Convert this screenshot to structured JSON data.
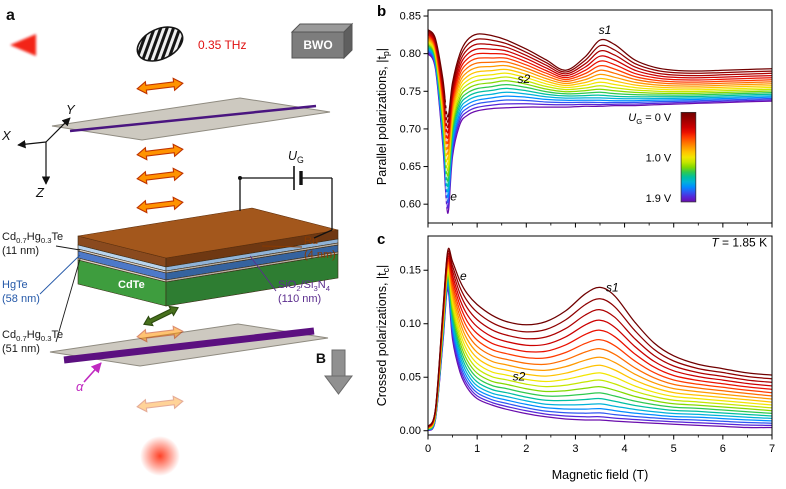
{
  "panels": {
    "a": "a",
    "b": "b",
    "c": "c"
  },
  "panel_a": {
    "beam_label": "0.35 THz",
    "source_label": "BWO",
    "axis_labels": {
      "x": "X",
      "y": "Y",
      "z": "Z"
    },
    "gate": {
      "pre": "U",
      "sub": "G"
    },
    "field_label": "B",
    "alpha_label": "α",
    "layers": {
      "cap_top_line1": "Cd~0.7~Hg~0.3~Te",
      "cap_top_line2": "(11 nm)",
      "hgte_line1": "HgTe",
      "hgte_line2": "(58 nm)",
      "substrate": "CdTe",
      "cap_bottom_line1": "Cd~0.7~Hg~0.3~Te",
      "cap_bottom_line2": "(51 nm)",
      "ru_line1": "Ru",
      "ru_line2": "(4 nm)",
      "insulator_line1": "SiO~2~/Si~3~N~4~",
      "insulator_line2": "(110 nm)"
    },
    "colors": {
      "beam": "#f21000",
      "plate": "#cdc9c0",
      "polarizer_line": "#4a1580",
      "analyzer_stripe": "#5c1080",
      "ru_top": "#a3571c",
      "hgte_blue": "#4d79c9",
      "cdte_green": "#3e9d3e",
      "insulator_blue": "#b8d4ee",
      "arrow_orange": "#ff9300",
      "rotated_green": "#47701c",
      "alpha_magenta": "#c02ac0"
    }
  },
  "legend": {
    "entries": [
      {
        "pre": "U",
        "sub": "G",
        "text": " = 0 V"
      },
      {
        "text": "1.0 V"
      },
      {
        "text": "1.9 V"
      }
    ]
  },
  "chart_data": [
    {
      "type": "line",
      "panel": "b",
      "ylabel": "Parallel polarizations, |t~p~|",
      "xlabel": "",
      "xlim": [
        0,
        7
      ],
      "ylim": [
        0.575,
        0.858
      ],
      "yticks": [
        0.6,
        0.65,
        0.7,
        0.75,
        0.8,
        0.85
      ],
      "xticks": [
        0,
        1,
        2,
        3,
        4,
        5,
        6,
        7
      ],
      "show_x_labels": false,
      "x": [
        0,
        0.15,
        0.3,
        0.4,
        0.5,
        0.65,
        0.8,
        1,
        1.3,
        1.6,
        2,
        2.4,
        2.8,
        3.2,
        3.5,
        3.8,
        4.2,
        4.6,
        5,
        5.5,
        6,
        6.5,
        7
      ],
      "series_top": {
        "name": "UG = 0 V",
        "values": [
          0.832,
          0.82,
          0.768,
          0.716,
          0.762,
          0.8,
          0.818,
          0.826,
          0.824,
          0.818,
          0.806,
          0.792,
          0.778,
          0.796,
          0.818,
          0.812,
          0.792,
          0.782,
          0.778,
          0.777,
          0.778,
          0.779,
          0.78
        ]
      },
      "series_mid": {
        "name": "UG = 1.0 V",
        "values": [
          0.816,
          0.8,
          0.724,
          0.652,
          0.716,
          0.752,
          0.764,
          0.77,
          0.772,
          0.774,
          0.768,
          0.76,
          0.755,
          0.758,
          0.762,
          0.759,
          0.755,
          0.753,
          0.752,
          0.752,
          0.753,
          0.754,
          0.755
        ]
      },
      "series_bottom": {
        "name": "UG = 1.9 V",
        "values": [
          0.8,
          0.78,
          0.68,
          0.588,
          0.664,
          0.706,
          0.718,
          0.724,
          0.727,
          0.728,
          0.729,
          0.729,
          0.729,
          0.73,
          0.73,
          0.731,
          0.731,
          0.732,
          0.733,
          0.734,
          0.735,
          0.736,
          0.737
        ]
      },
      "n_curves": 19,
      "curve_colors": [
        "#700000",
        "#8e0000",
        "#ad0000",
        "#cc0000",
        "#ea1000",
        "#ff3c00",
        "#ff6c00",
        "#ff9900",
        "#ffc300",
        "#f2e600",
        "#c6e600",
        "#84d900",
        "#2fc94f",
        "#00bfa0",
        "#00b2d9",
        "#008cff",
        "#2f57f2",
        "#5526d9",
        "#6a0dad"
      ],
      "annotations": [
        {
          "text": "s1",
          "x": 3.6,
          "y": 0.826,
          "italic": true
        },
        {
          "text": "s2",
          "x": 1.95,
          "y": 0.761,
          "italic": true
        },
        {
          "text": "e",
          "x": 0.52,
          "y": 0.605,
          "italic": true
        }
      ],
      "dashed_guide": {
        "x": 0.37,
        "y1": 0.596,
        "y2": 0.818
      },
      "colorbar": {
        "x0": 5.15,
        "x1": 5.45,
        "y_top": 0.722,
        "y_bot": 0.603,
        "labels_x": 4.95,
        "label_vals": [
          0.716,
          0.662,
          0.608
        ]
      }
    },
    {
      "type": "line",
      "panel": "c",
      "ylabel": "Crossed polarizations, |t~c~|",
      "xlabel": "Magnetic field (T)",
      "xlim": [
        0,
        7
      ],
      "ylim": [
        -0.004,
        0.182
      ],
      "yticks": [
        0.0,
        0.05,
        0.1,
        0.15
      ],
      "xticks": [
        0,
        1,
        2,
        3,
        4,
        5,
        6,
        7
      ],
      "show_x_labels": true,
      "x": [
        0,
        0.15,
        0.3,
        0.4,
        0.5,
        0.65,
        0.8,
        1,
        1.3,
        1.6,
        2,
        2.4,
        2.8,
        3.2,
        3.5,
        3.8,
        4.2,
        4.6,
        5,
        5.5,
        6,
        6.5,
        7
      ],
      "series_top": {
        "name": "UG = 0 V",
        "values": [
          0.004,
          0.02,
          0.11,
          0.168,
          0.158,
          0.14,
          0.128,
          0.118,
          0.108,
          0.102,
          0.099,
          0.102,
          0.112,
          0.128,
          0.134,
          0.126,
          0.102,
          0.082,
          0.07,
          0.062,
          0.058,
          0.054,
          0.052
        ]
      },
      "series_mid": {
        "name": "UG = 1.0 V",
        "values": [
          0.002,
          0.015,
          0.095,
          0.15,
          0.12,
          0.092,
          0.075,
          0.063,
          0.055,
          0.052,
          0.048,
          0.046,
          0.048,
          0.052,
          0.054,
          0.05,
          0.042,
          0.036,
          0.032,
          0.03,
          0.028,
          0.026,
          0.024
        ]
      },
      "series_bottom": {
        "name": "UG = 1.9 V",
        "values": [
          0,
          0.01,
          0.08,
          0.132,
          0.085,
          0.055,
          0.04,
          0.03,
          0.024,
          0.02,
          0.016,
          0.013,
          0.011,
          0.01,
          0.01,
          0.009,
          0.008,
          0.007,
          0.006,
          0.005,
          0.004,
          0.003,
          0.003
        ]
      },
      "n_curves": 19,
      "curve_colors": [
        "#700000",
        "#8e0000",
        "#ad0000",
        "#cc0000",
        "#ea1000",
        "#ff3c00",
        "#ff6c00",
        "#ff9900",
        "#ffc300",
        "#f2e600",
        "#c6e600",
        "#84d900",
        "#2fc94f",
        "#00bfa0",
        "#00b2d9",
        "#008cff",
        "#2f57f2",
        "#5526d9",
        "#6a0dad"
      ],
      "annotations": [
        {
          "text": "e",
          "x": 0.72,
          "y": 0.141,
          "italic": true
        },
        {
          "text": "s1",
          "x": 3.75,
          "y": 0.13,
          "italic": true
        },
        {
          "text": "s2",
          "x": 1.85,
          "y": 0.047,
          "italic": true
        }
      ],
      "corner_label": {
        "pre": "T",
        "text": " = 1.85 K"
      }
    }
  ]
}
